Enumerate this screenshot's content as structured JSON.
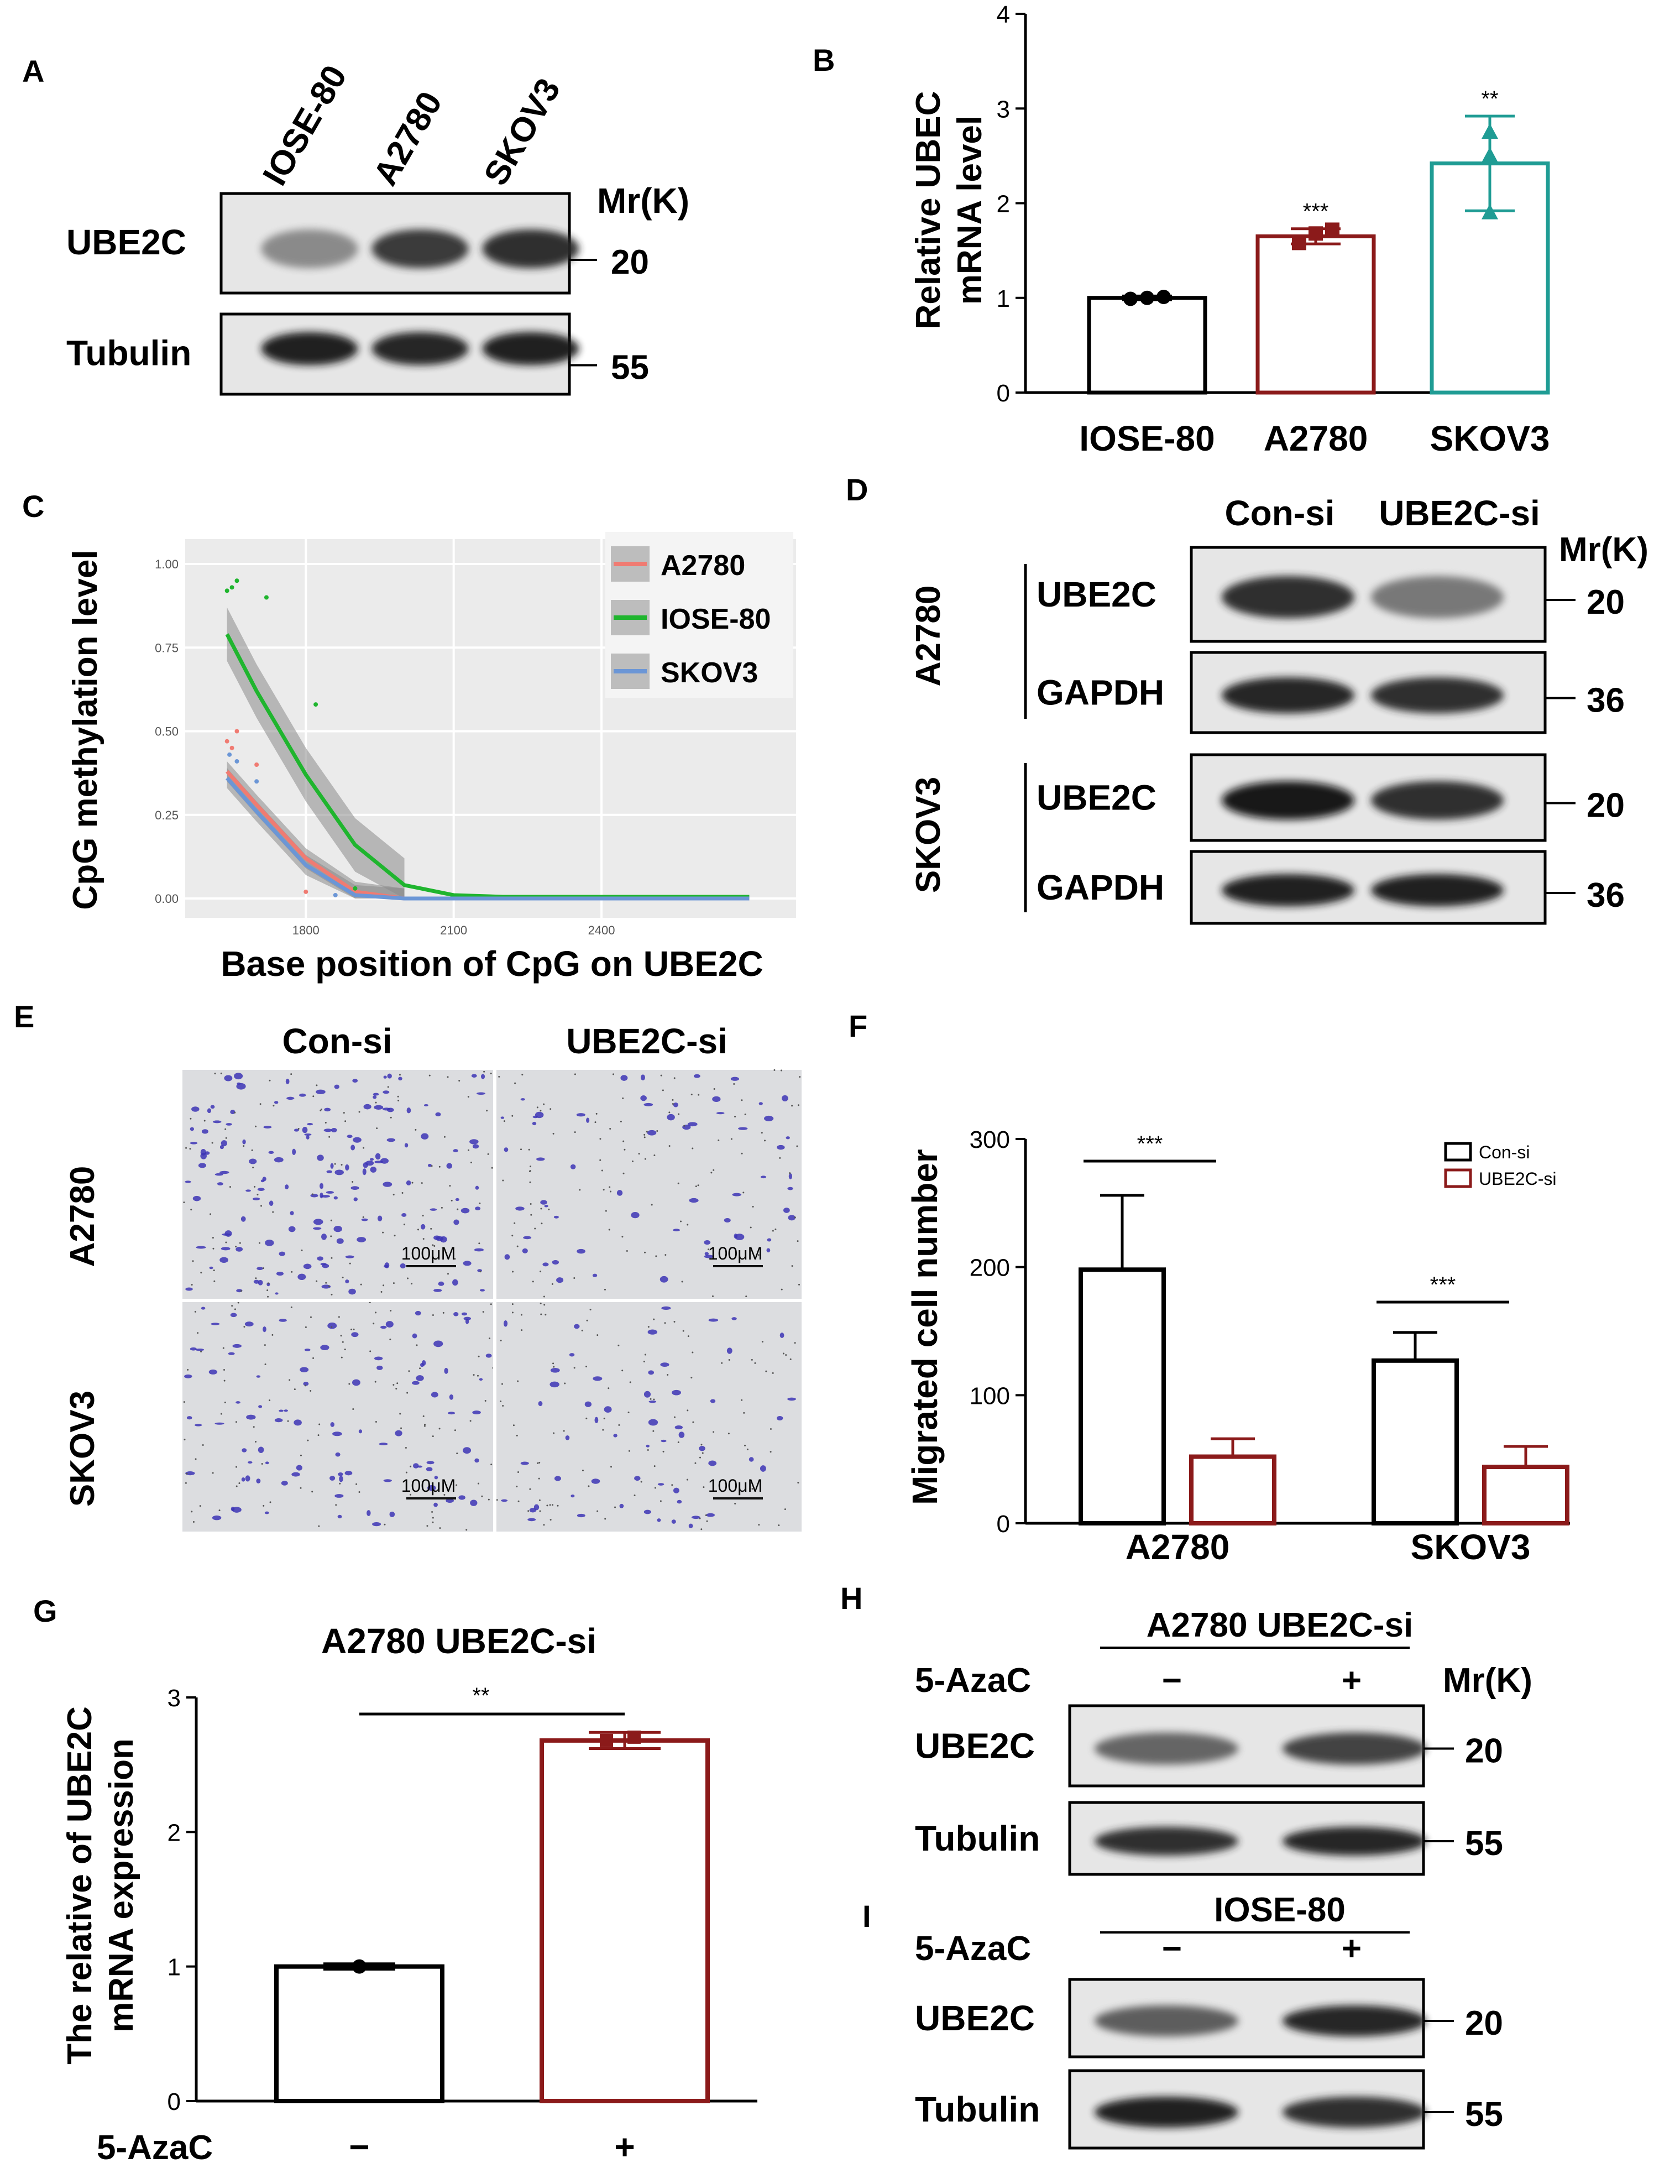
{
  "panels": {
    "A": {
      "letter": "A",
      "lanes": [
        "IOSE-80",
        "A2780",
        "SKOV3"
      ],
      "mr_label": "Mr(K)",
      "rows": [
        {
          "name": "UBE2C",
          "mw": "20",
          "intensity": [
            0.35,
            0.8,
            0.85
          ]
        },
        {
          "name": "Tubulin",
          "mw": "55",
          "intensity": [
            0.95,
            0.9,
            0.92
          ]
        }
      ]
    },
    "B": {
      "letter": "B",
      "ylabel_line1": "Relative UBEC",
      "ylabel_line2": "mRNA level",
      "yticks": [
        "0",
        "1",
        "2",
        "3",
        "4"
      ],
      "significance": [
        "",
        "***",
        "**"
      ]
    },
    "C": {
      "letter": "C",
      "ylabel": "CpG methylation level",
      "xlabel": "Base position of CpG on UBE2C",
      "xticks": [
        "1800",
        "2100",
        "2400"
      ],
      "yticks": [
        "0.00",
        "0.25",
        "0.50",
        "0.75",
        "1.00"
      ],
      "legend": [
        {
          "label": "A2780",
          "color": "#f07b72"
        },
        {
          "label": "IOSE-80",
          "color": "#1fb52e"
        },
        {
          "label": "SKOV3",
          "color": "#6b96d6"
        }
      ]
    },
    "D": {
      "letter": "D",
      "lanes": [
        "Con-si",
        "UBE2C-si"
      ],
      "mr_label": "Mr(K)",
      "groups": [
        {
          "cell": "A2780",
          "rows": [
            {
              "name": "UBE2C",
              "mw": "20",
              "intensity": [
                0.85,
                0.45
              ]
            },
            {
              "name": "GAPDH",
              "mw": "36",
              "intensity": [
                0.9,
                0.85
              ]
            }
          ]
        },
        {
          "cell": "SKOV3",
          "rows": [
            {
              "name": "UBE2C",
              "mw": "20",
              "intensity": [
                0.98,
                0.85
              ]
            },
            {
              "name": "GAPDH",
              "mw": "36",
              "intensity": [
                0.95,
                0.92
              ]
            }
          ]
        }
      ]
    },
    "E": {
      "letter": "E",
      "cols": [
        "Con-si",
        "UBE2C-si"
      ],
      "rows": [
        "A2780",
        "SKOV3"
      ],
      "scalebar": "100μM"
    },
    "F": {
      "letter": "F",
      "ylabel": "Migrated cell number",
      "yticks": [
        "0",
        "100",
        "200",
        "300"
      ],
      "legend": [
        "Con-si",
        "UBE2C-si"
      ],
      "significance": [
        "***",
        "***"
      ]
    },
    "G": {
      "letter": "G",
      "title": "A2780 UBE2C-si",
      "ylabel_line1": "The relative of UBE2C",
      "ylabel_line2": "mRNA expression",
      "yticks": [
        "0",
        "1",
        "2",
        "3"
      ],
      "treatment_label": "5-AzaC",
      "significance": "**"
    },
    "H": {
      "letter": "H",
      "header": "A2780 UBE2C-si",
      "treatment_label": "5-AzaC",
      "mr_label": "Mr(K)",
      "rows": [
        {
          "name": "UBE2C",
          "mw": "20",
          "intensity": [
            0.55,
            0.75
          ]
        },
        {
          "name": "Tubulin",
          "mw": "55",
          "intensity": [
            0.85,
            0.9
          ]
        }
      ]
    },
    "I": {
      "letter": "I",
      "header": "IOSE-80",
      "treatment_label": "5-AzaC",
      "rows": [
        {
          "name": "UBE2C",
          "mw": "20",
          "intensity": [
            0.6,
            0.9
          ]
        },
        {
          "name": "Tubulin",
          "mw": "55",
          "intensity": [
            0.95,
            0.85
          ]
        }
      ]
    }
  },
  "chart_data": [
    {
      "panel": "B",
      "type": "bar",
      "categories": [
        "IOSE-80",
        "A2780",
        "SKOV3"
      ],
      "values": [
        1.0,
        1.65,
        2.42
      ],
      "errors": [
        0.02,
        0.08,
        0.5
      ],
      "points": [
        [
          0.99,
          1.0,
          1.01
        ],
        [
          1.58,
          1.68,
          1.72
        ],
        [
          1.9,
          2.5,
          2.75
        ]
      ],
      "colors": [
        "#000000",
        "#8b1a1a",
        "#1f9c94"
      ],
      "ylabel": "Relative UBEC mRNA level",
      "ylim": [
        0,
        4
      ]
    },
    {
      "panel": "C",
      "type": "line",
      "xlabel": "Base position of CpG on UBE2C",
      "ylabel": "CpG methylation level",
      "xlim": [
        1600,
        2750
      ],
      "ylim": [
        0,
        1
      ],
      "series": [
        {
          "name": "A2780",
          "x": [
            1640,
            1700,
            1800,
            1900,
            2000,
            2100,
            2700
          ],
          "y": [
            0.38,
            0.28,
            0.12,
            0.02,
            0.0,
            0.0,
            0.0
          ]
        },
        {
          "name": "IOSE-80",
          "x": [
            1640,
            1700,
            1800,
            1900,
            2000,
            2100,
            2200,
            2700
          ],
          "y": [
            0.79,
            0.62,
            0.37,
            0.16,
            0.04,
            0.01,
            0.005,
            0.005
          ]
        },
        {
          "name": "SKOV3",
          "x": [
            1640,
            1700,
            1800,
            1900,
            2000,
            2100,
            2700
          ],
          "y": [
            0.36,
            0.26,
            0.1,
            0.01,
            0.0,
            0.0,
            0.0
          ]
        }
      ],
      "scatter": [
        {
          "name": "IOSE-80",
          "x": [
            1640,
            1650,
            1660,
            1720,
            1820,
            1900
          ],
          "y": [
            0.92,
            0.93,
            0.95,
            0.9,
            0.58,
            0.03
          ]
        },
        {
          "name": "A2780",
          "x": [
            1640,
            1650,
            1660,
            1700,
            1800
          ],
          "y": [
            0.47,
            0.45,
            0.5,
            0.4,
            0.02
          ]
        },
        {
          "name": "SKOV3",
          "x": [
            1645,
            1660,
            1700,
            1860
          ],
          "y": [
            0.43,
            0.41,
            0.35,
            0.01
          ]
        }
      ]
    },
    {
      "panel": "F",
      "type": "bar",
      "categories": [
        "A2780",
        "SKOV3"
      ],
      "series": [
        {
          "name": "Con-si",
          "values": [
            198,
            127
          ],
          "errors": [
            58,
            22
          ]
        },
        {
          "name": "UBE2C-si",
          "values": [
            52,
            44
          ],
          "errors": [
            14,
            16
          ]
        }
      ],
      "ylabel": "Migrated cell number",
      "ylim": [
        0,
        300
      ]
    },
    {
      "panel": "G",
      "type": "bar",
      "title": "A2780 UBE2C-si",
      "categories": [
        "−",
        "+"
      ],
      "values": [
        1.0,
        2.68
      ],
      "errors": [
        0.02,
        0.06
      ],
      "colors": [
        "#000000",
        "#8b1a1a"
      ],
      "ylabel": "The relative of UBE2C mRNA expression",
      "ylim": [
        0,
        3
      ]
    }
  ]
}
